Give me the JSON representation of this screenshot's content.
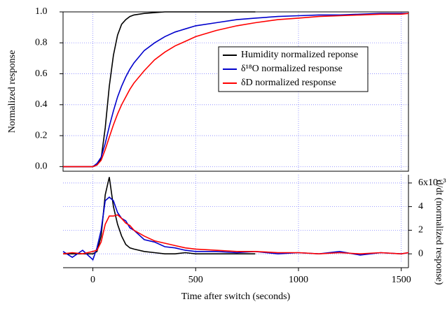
{
  "chart_data": [
    {
      "type": "line",
      "y_label": "Normalized response",
      "x": [
        -145,
        -100,
        -50,
        0,
        20,
        40,
        60,
        80,
        100,
        120,
        140,
        160,
        180,
        200,
        250,
        300,
        350,
        400,
        450,
        500,
        600,
        700,
        790,
        900,
        1000,
        1100,
        1200,
        1300,
        1400,
        1500,
        1535
      ],
      "xlim": [
        -145,
        1535
      ],
      "xticks": [
        0,
        500,
        1000,
        1500
      ],
      "ylim": [
        -0.03,
        1.0
      ],
      "yticks": [
        {
          "value": 0,
          "label": "0.0"
        },
        0.2,
        0.4,
        0.6,
        0.8,
        {
          "value": 1,
          "label": "1.0"
        }
      ],
      "grid": true,
      "y_axis_side": "left",
      "legend": "upper right",
      "series": [
        {
          "name": "Humidity normalized reponse",
          "color": "#000000",
          "values": [
            0,
            0,
            0,
            0,
            0.01,
            0.05,
            0.25,
            0.52,
            0.72,
            0.85,
            0.92,
            0.95,
            0.97,
            0.98,
            0.99,
            0.995,
            1,
            1,
            1,
            1,
            1,
            1,
            1,
            null,
            null,
            null,
            null,
            null,
            null,
            null,
            null
          ]
        },
        {
          "name": "δ¹⁸O normalized response",
          "color": "#0000cc",
          "values": [
            0,
            0,
            0,
            0,
            0.02,
            0.06,
            0.15,
            0.26,
            0.36,
            0.45,
            0.52,
            0.58,
            0.63,
            0.67,
            0.75,
            0.8,
            0.84,
            0.87,
            0.89,
            0.91,
            0.93,
            0.95,
            0.96,
            0.97,
            0.975,
            0.98,
            0.98,
            0.985,
            0.99,
            0.99,
            0.99
          ]
        },
        {
          "name": "δD normalized response",
          "color": "#ff0000",
          "values": [
            0,
            0,
            0,
            0,
            0.01,
            0.04,
            0.11,
            0.19,
            0.27,
            0.34,
            0.4,
            0.45,
            0.5,
            0.54,
            0.62,
            0.69,
            0.74,
            0.78,
            0.81,
            0.84,
            0.88,
            0.91,
            0.93,
            0.95,
            0.96,
            0.97,
            0.975,
            0.98,
            0.985,
            0.985,
            0.99
          ]
        }
      ]
    },
    {
      "type": "line",
      "x_label": "Time after switch (seconds)",
      "y_label": "d/dt (normalized response)",
      "x": [
        -145,
        -100,
        -50,
        0,
        20,
        40,
        60,
        80,
        100,
        120,
        140,
        160,
        180,
        200,
        250,
        300,
        350,
        400,
        450,
        500,
        600,
        700,
        790,
        900,
        1000,
        1100,
        1200,
        1300,
        1400,
        1500,
        1535
      ],
      "xlim": [
        -145,
        1535
      ],
      "xticks": [
        0,
        500,
        1000,
        1500
      ],
      "ylim": [
        -0.7,
        6.7
      ],
      "yticks": [
        0,
        2,
        4,
        {
          "value": 6,
          "label": "6x10⁻³"
        }
      ],
      "grid": true,
      "y_axis_side": "right",
      "series": [
        {
          "color": "#000000",
          "values": [
            0,
            0,
            0,
            0,
            0.2,
            1.5,
            5,
            6.5,
            4,
            2.5,
            1.5,
            0.8,
            0.5,
            0.4,
            0.2,
            0.1,
            0,
            0,
            0.1,
            0,
            0,
            0,
            0,
            null,
            null,
            null,
            null,
            null,
            null,
            null,
            null
          ]
        },
        {
          "color": "#0000cc",
          "values": [
            0.2,
            -0.3,
            0.3,
            -0.5,
            0.5,
            2,
            4.5,
            4.8,
            4.5,
            3.5,
            3,
            2.8,
            2.2,
            2,
            1.2,
            1,
            0.6,
            0.5,
            0.3,
            0.2,
            0.2,
            0.1,
            0.2,
            0,
            0.1,
            0,
            0.2,
            -0.1,
            0.1,
            0,
            0.1
          ]
        },
        {
          "color": "#ff0000",
          "values": [
            0,
            0.1,
            0,
            0.2,
            0.3,
            1,
            2.5,
            3.2,
            3.2,
            3.3,
            3,
            2.6,
            2.4,
            2,
            1.5,
            1.1,
            0.9,
            0.7,
            0.5,
            0.4,
            0.3,
            0.2,
            0.2,
            0.1,
            0.1,
            0,
            0.1,
            0,
            0.1,
            0,
            0.1
          ]
        }
      ]
    }
  ]
}
